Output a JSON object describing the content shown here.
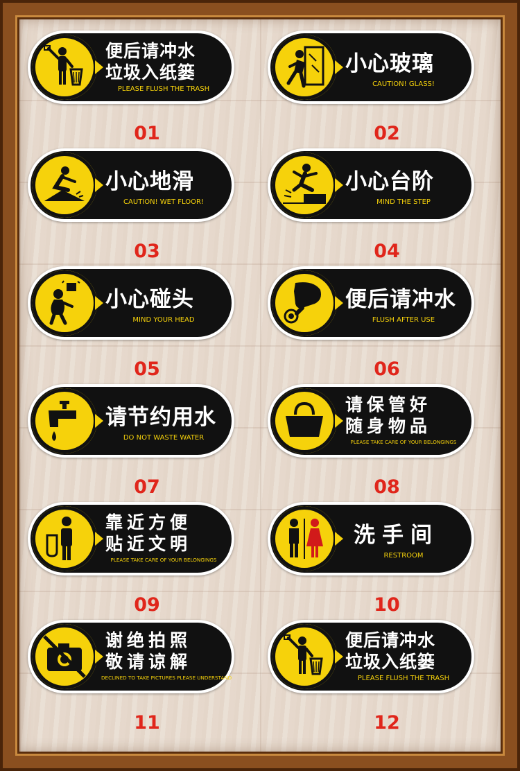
{
  "signs": [
    {
      "lines": [
        "便后请冲水",
        "垃圾入纸篓"
      ],
      "en": "PLEASE FLUSH THE TRASH",
      "number": "01",
      "icon": "trash-person-icon"
    },
    {
      "lines": [
        "小心玻璃"
      ],
      "en": "CAUTION! GLASS!",
      "number": "02",
      "icon": "glass-warning-icon"
    },
    {
      "lines": [
        "小心地滑"
      ],
      "en": "CAUTION! WET FLOOR!",
      "number": "03",
      "icon": "slip-icon"
    },
    {
      "lines": [
        "小心台阶"
      ],
      "en": "MIND THE STEP",
      "number": "04",
      "icon": "step-icon"
    },
    {
      "lines": [
        "小心碰头"
      ],
      "en": "MIND YOUR HEAD",
      "number": "05",
      "icon": "head-bump-icon"
    },
    {
      "lines": [
        "便后请冲水"
      ],
      "en": "FLUSH AFTER USE",
      "number": "06",
      "icon": "flush-button-icon"
    },
    {
      "lines": [
        "请节约用水"
      ],
      "en": "DO NOT WASTE WATER",
      "number": "07",
      "icon": "faucet-icon"
    },
    {
      "lines": [
        "请保管好",
        "随身物品"
      ],
      "en": "PLEASE TAKE CARE OF YOUR BELONGINGS",
      "number": "08",
      "icon": "handbag-icon"
    },
    {
      "lines": [
        "靠近方便",
        "贴近文明"
      ],
      "en": "PLEASE TAKE CARE OF YOUR BELONGINGS",
      "number": "09",
      "icon": "urinal-icon"
    },
    {
      "lines": [
        "洗手间"
      ],
      "en": "RESTROOM",
      "number": "10",
      "icon": "restroom-icon"
    },
    {
      "lines": [
        "谢绝拍照",
        "敬请谅解"
      ],
      "en": "DECLINED TO TAKE PICTURES PLEASE UNDERSTAND",
      "number": "11",
      "icon": "no-camera-icon"
    },
    {
      "lines": [
        "便后请冲水",
        "垃圾入纸篓"
      ],
      "en": "PLEASE FLUSH THE TRASH",
      "number": "12",
      "icon": "trash-person-icon"
    }
  ],
  "colors": {
    "sign_bg": "#111111",
    "accent": "#f6d20b",
    "number": "#e0261b",
    "frame": "#8a4f1f"
  }
}
